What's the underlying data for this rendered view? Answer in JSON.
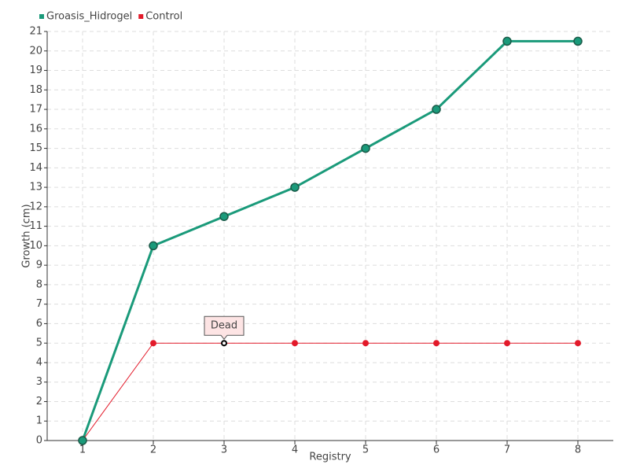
{
  "chart_data": {
    "type": "line",
    "x_label": "Registry",
    "y_label": "Growth (cm)",
    "x": [
      1,
      2,
      3,
      4,
      5,
      6,
      7,
      8
    ],
    "xlim": [
      0.5,
      8.5
    ],
    "xticks": [
      1,
      2,
      3,
      4,
      5,
      6,
      7,
      8
    ],
    "ylim": [
      0,
      21
    ],
    "yticks": [
      0,
      1,
      2,
      3,
      4,
      5,
      6,
      7,
      8,
      9,
      10,
      11,
      12,
      13,
      14,
      15,
      16,
      17,
      18,
      19,
      20,
      21
    ],
    "grid": true,
    "legend": "top-left",
    "series": [
      {
        "name": "Groasis_Hidrogel",
        "color": "#1a9a7a",
        "values": [
          0,
          10,
          11.5,
          13,
          15,
          17,
          20.5,
          20.5
        ]
      },
      {
        "name": "Control",
        "color": "#e31a2a",
        "values": [
          0,
          5,
          5,
          5,
          5,
          5,
          5,
          5
        ]
      }
    ],
    "annotations": [
      {
        "text": "Dead",
        "x": 3,
        "y": 5
      }
    ]
  }
}
